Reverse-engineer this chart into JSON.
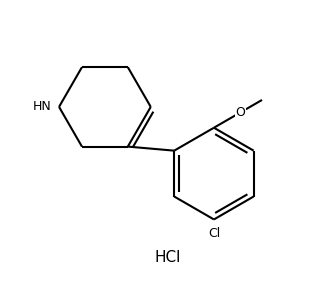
{
  "background_color": "#ffffff",
  "line_color": "#000000",
  "line_width": 1.5,
  "figsize": [
    3.28,
    2.89
  ],
  "dpi": 100,
  "xlim": [
    -0.8,
    8.2
  ],
  "ylim": [
    0.3,
    8.0
  ],
  "labels": {
    "HN": {
      "text": "HN",
      "fontsize": 9
    },
    "Cl": {
      "text": "Cl",
      "fontsize": 9
    },
    "O": {
      "text": "O",
      "fontsize": 9
    },
    "HCl": {
      "text": "HCl",
      "fontsize": 11
    }
  }
}
